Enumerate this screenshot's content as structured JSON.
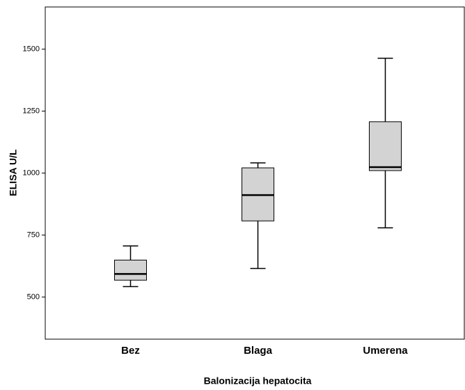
{
  "chart_data": {
    "type": "box",
    "xlabel": "Balonizacija hepatocita",
    "ylabel": "ELISA U/L",
    "categories": [
      "Bez",
      "Blaga",
      "Umerena"
    ],
    "boxes": [
      {
        "min": 542,
        "q1": 568,
        "median": 593,
        "q3": 649,
        "max": 706
      },
      {
        "min": 615,
        "q1": 807,
        "median": 911,
        "q3": 1021,
        "max": 1041
      },
      {
        "min": 779,
        "q1": 1010,
        "median": 1024,
        "q3": 1207,
        "max": 1463
      }
    ],
    "color": "#d3d3d3",
    "ylim": [
      330,
      1670
    ],
    "yticks": [
      500,
      750,
      1000,
      1250,
      1500
    ],
    "grid": false
  }
}
